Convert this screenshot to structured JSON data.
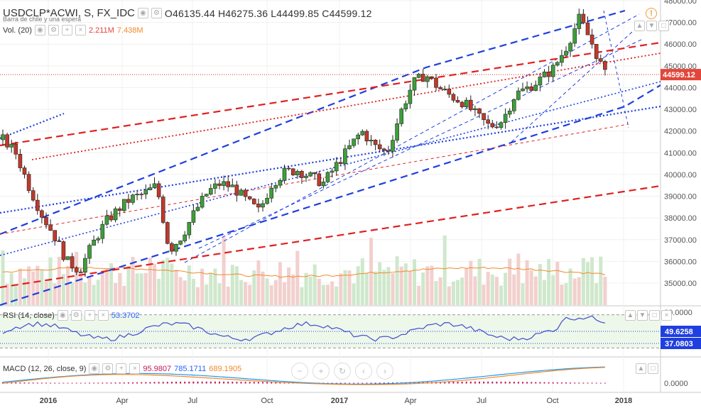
{
  "header": {
    "symbol": "USDCLP*ACWI, S, FX_IDC",
    "overlay_text": "Barra de chile y una espera",
    "open": "O46135.44",
    "high": "H46275.36",
    "low": "L44499.85",
    "close": "C44599.12"
  },
  "volume": {
    "label": "Vol. (20)",
    "v1": "2.211M",
    "v2": "7.438M"
  },
  "rsi": {
    "label": "RSI (14, close)",
    "value": "53.3702",
    "marker1": "49.6258",
    "marker2": "37.0803"
  },
  "macd": {
    "label": "MACD (12, 26, close, 9)",
    "v1": "95.9807",
    "v2": "785.1711",
    "v3": "689.1905"
  },
  "price_axis": {
    "ticks": [
      "48000.00",
      "47000.00",
      "46000.00",
      "45000.00",
      "44000.00",
      "43000.00",
      "42000.00",
      "41000.00",
      "40000.00",
      "39000.00",
      "38000.00",
      "37000.00",
      "36000.00",
      "35000.00"
    ],
    "current": "44599.12"
  },
  "rsi_axis": {
    "top": "80.0000"
  },
  "macd_axis": {
    "zero": "0.0000"
  },
  "time_axis": [
    "2016",
    "Apr",
    "Jul",
    "Oct",
    "2017",
    "Apr",
    "Jul",
    "Oct",
    "2018"
  ],
  "colors": {
    "up": "#3d9f3a",
    "down": "#c0392b",
    "blue": "#1f3fe0",
    "red": "#e02020",
    "rsi": "#4a58d0",
    "macd": "#2196f3",
    "signal": "#ef8a2a"
  },
  "icons": [
    "eye-icon",
    "gear-icon",
    "close-icon",
    "plus-icon",
    "warning-icon"
  ],
  "nav_buttons": [
    "zoom-out",
    "zoom-in",
    "reset",
    "scroll-left",
    "scroll-right"
  ]
}
